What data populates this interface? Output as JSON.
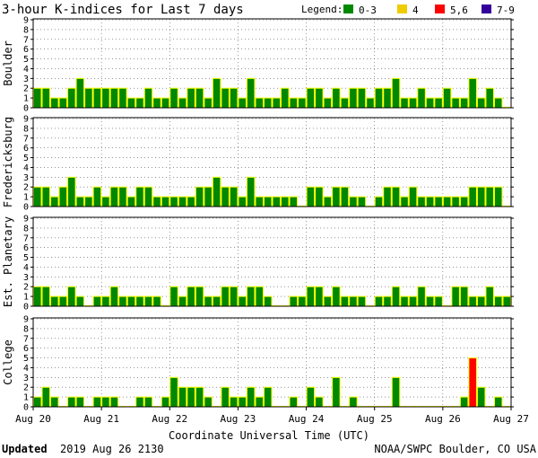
{
  "chart_data": {
    "type": "bar",
    "title": "3-hour K-indices for Last 7 days",
    "legend": {
      "label": "Legend:",
      "placement": "top-right",
      "items": [
        {
          "label": "0-3",
          "color": "#008800"
        },
        {
          "label": "4",
          "color": "#eecc00"
        },
        {
          "label": "5,6",
          "color": "#ff0000"
        },
        {
          "label": "7-9",
          "color": "#330099"
        }
      ]
    },
    "bar_edge_color": "#ffff00",
    "x_ticks": [
      "Aug 20",
      "Aug 21",
      "Aug 22",
      "Aug 23",
      "Aug 24",
      "Aug 25",
      "Aug 26",
      "Aug 27"
    ],
    "xlabel": "Coordinate Universal Time (UTC)",
    "ylim": [
      0,
      9
    ],
    "y_ticks": [
      0,
      1,
      2,
      3,
      4,
      5,
      6,
      7,
      8,
      9
    ],
    "intervals_per_day": 8,
    "total_intervals": 56,
    "grid": "dotted horizontal",
    "panels": [
      {
        "name": "Boulder",
        "values": [
          2,
          2,
          1,
          1,
          2,
          3,
          2,
          2,
          2,
          2,
          2,
          1,
          1,
          2,
          1,
          1,
          2,
          1,
          2,
          2,
          1,
          3,
          2,
          2,
          1,
          3,
          1,
          1,
          1,
          2,
          1,
          1,
          2,
          2,
          1,
          2,
          1,
          2,
          2,
          1,
          2,
          2,
          3,
          1,
          1,
          2,
          1,
          1,
          2,
          1,
          1,
          3,
          1,
          2,
          1,
          0
        ]
      },
      {
        "name": "Fredericksburg",
        "values": [
          2,
          2,
          1,
          2,
          3,
          1,
          1,
          2,
          1,
          2,
          2,
          1,
          2,
          2,
          1,
          1,
          1,
          1,
          1,
          2,
          2,
          3,
          2,
          2,
          1,
          3,
          1,
          1,
          1,
          1,
          1,
          0,
          2,
          2,
          1,
          2,
          2,
          1,
          1,
          0,
          1,
          2,
          2,
          1,
          2,
          1,
          1,
          1,
          1,
          1,
          1,
          2,
          2,
          2,
          2,
          0
        ]
      },
      {
        "name": "Est. Planetary",
        "values": [
          2,
          2,
          1,
          1,
          2,
          1,
          0,
          1,
          1,
          2,
          1,
          1,
          1,
          1,
          1,
          0,
          2,
          1,
          2,
          2,
          1,
          1,
          2,
          2,
          1,
          2,
          2,
          1,
          0,
          0,
          1,
          1,
          2,
          2,
          1,
          2,
          1,
          1,
          1,
          0,
          1,
          1,
          2,
          1,
          1,
          2,
          1,
          1,
          0,
          2,
          2,
          1,
          1,
          2,
          1,
          1
        ]
      },
      {
        "name": "College",
        "values": [
          1,
          2,
          1,
          0,
          1,
          1,
          0,
          1,
          1,
          1,
          0,
          0,
          1,
          1,
          0,
          1,
          3,
          2,
          2,
          2,
          1,
          0,
          2,
          1,
          1,
          2,
          1,
          2,
          0,
          0,
          1,
          0,
          2,
          1,
          0,
          3,
          0,
          1,
          0,
          0,
          0,
          0,
          3,
          0,
          0,
          0,
          0,
          0,
          0,
          0,
          1,
          5,
          2,
          0,
          1,
          0
        ]
      }
    ]
  },
  "footer": {
    "updated_label": "Updated",
    "updated_value": "2019 Aug 26 2130",
    "source": "NOAA/SWPC Boulder, CO USA"
  }
}
